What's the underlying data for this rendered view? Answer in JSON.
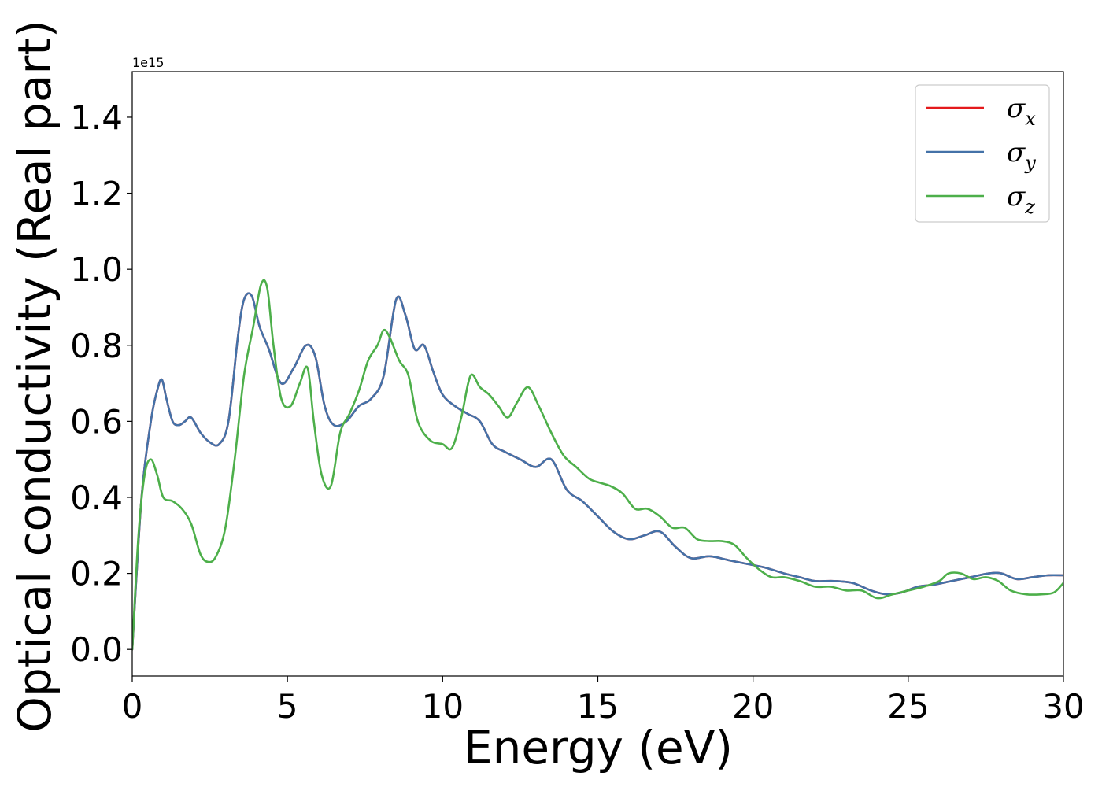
{
  "chart_data": {
    "type": "line",
    "title": "",
    "xlabel": "Energy (eV)",
    "ylabel": "Optical conductivity (Real part)",
    "y_offset_label": "1e15",
    "xlim": [
      0,
      30
    ],
    "ylim": [
      -0.07,
      1.52
    ],
    "y_scale": "×1e15",
    "grid": false,
    "legend_position": "upper-right",
    "x_ticks": [
      0,
      5,
      10,
      15,
      20,
      25,
      30
    ],
    "y_ticks": [
      "0.0",
      "0.2",
      "0.4",
      "0.6",
      "0.8",
      "1.0",
      "1.2",
      "1.4"
    ],
    "series": [
      {
        "name": "σx",
        "base": "σ",
        "sub": "x",
        "color": "#e41a1c",
        "x": [
          0.0,
          0.3,
          0.6,
          0.8,
          0.95,
          1.1,
          1.3,
          1.5,
          1.7,
          1.9,
          2.2,
          2.5,
          2.8,
          3.1,
          3.4,
          3.6,
          3.85,
          4.1,
          4.4,
          4.8,
          5.2,
          5.6,
          5.9,
          6.2,
          6.5,
          6.9,
          7.3,
          7.7,
          8.1,
          8.5,
          8.8,
          9.1,
          9.4,
          9.7,
          10.0,
          10.4,
          10.8,
          11.2,
          11.6,
          12.0,
          12.5,
          13.0,
          13.5,
          14.0,
          14.5,
          15.0,
          15.5,
          16.0,
          16.5,
          17.0,
          17.5,
          18.0,
          18.6,
          19.2,
          19.8,
          20.4,
          21.0,
          21.5,
          22.0,
          22.6,
          23.2,
          23.8,
          24.3,
          24.8,
          25.3,
          25.8,
          26.4,
          27.0,
          27.6,
          28.0,
          28.5,
          29.0,
          29.5,
          30.0
        ],
        "values": [
          0.0,
          0.4,
          0.6,
          0.68,
          0.71,
          0.66,
          0.6,
          0.59,
          0.6,
          0.61,
          0.57,
          0.545,
          0.54,
          0.6,
          0.82,
          0.92,
          0.93,
          0.85,
          0.79,
          0.7,
          0.74,
          0.8,
          0.77,
          0.64,
          0.59,
          0.6,
          0.64,
          0.66,
          0.72,
          0.92,
          0.88,
          0.79,
          0.8,
          0.73,
          0.67,
          0.64,
          0.62,
          0.6,
          0.54,
          0.52,
          0.5,
          0.48,
          0.5,
          0.42,
          0.39,
          0.35,
          0.31,
          0.29,
          0.3,
          0.31,
          0.27,
          0.24,
          0.245,
          0.235,
          0.225,
          0.215,
          0.2,
          0.19,
          0.18,
          0.18,
          0.175,
          0.155,
          0.145,
          0.15,
          0.165,
          0.17,
          0.18,
          0.19,
          0.2,
          0.2,
          0.185,
          0.19,
          0.195,
          0.195
        ]
      },
      {
        "name": "σy",
        "base": "σ",
        "sub": "y",
        "color": "#4472a8",
        "x": [
          0.0,
          0.3,
          0.6,
          0.8,
          0.95,
          1.1,
          1.3,
          1.5,
          1.7,
          1.9,
          2.2,
          2.5,
          2.8,
          3.1,
          3.4,
          3.6,
          3.85,
          4.1,
          4.4,
          4.8,
          5.2,
          5.6,
          5.9,
          6.2,
          6.5,
          6.9,
          7.3,
          7.7,
          8.1,
          8.5,
          8.8,
          9.1,
          9.4,
          9.7,
          10.0,
          10.4,
          10.8,
          11.2,
          11.6,
          12.0,
          12.5,
          13.0,
          13.5,
          14.0,
          14.5,
          15.0,
          15.5,
          16.0,
          16.5,
          17.0,
          17.5,
          18.0,
          18.6,
          19.2,
          19.8,
          20.4,
          21.0,
          21.5,
          22.0,
          22.6,
          23.2,
          23.8,
          24.3,
          24.8,
          25.3,
          25.8,
          26.4,
          27.0,
          27.6,
          28.0,
          28.5,
          29.0,
          29.5,
          30.0
        ],
        "values": [
          0.0,
          0.4,
          0.6,
          0.68,
          0.71,
          0.66,
          0.6,
          0.59,
          0.6,
          0.61,
          0.57,
          0.545,
          0.54,
          0.6,
          0.82,
          0.92,
          0.93,
          0.85,
          0.79,
          0.7,
          0.74,
          0.8,
          0.77,
          0.64,
          0.59,
          0.6,
          0.64,
          0.66,
          0.72,
          0.92,
          0.88,
          0.79,
          0.8,
          0.73,
          0.67,
          0.64,
          0.62,
          0.6,
          0.54,
          0.52,
          0.5,
          0.48,
          0.5,
          0.42,
          0.39,
          0.35,
          0.31,
          0.29,
          0.3,
          0.31,
          0.27,
          0.24,
          0.245,
          0.235,
          0.225,
          0.215,
          0.2,
          0.19,
          0.18,
          0.18,
          0.175,
          0.155,
          0.145,
          0.15,
          0.165,
          0.17,
          0.18,
          0.19,
          0.2,
          0.2,
          0.185,
          0.19,
          0.195,
          0.195
        ]
      },
      {
        "name": "σz",
        "base": "σ",
        "sub": "z",
        "color": "#4daf4a",
        "x": [
          0.0,
          0.2,
          0.4,
          0.6,
          0.8,
          1.0,
          1.3,
          1.6,
          1.9,
          2.2,
          2.45,
          2.7,
          3.0,
          3.3,
          3.6,
          3.9,
          4.15,
          4.35,
          4.55,
          4.8,
          5.1,
          5.4,
          5.65,
          5.85,
          6.1,
          6.4,
          6.7,
          7.0,
          7.3,
          7.6,
          7.9,
          8.1,
          8.3,
          8.6,
          8.9,
          9.2,
          9.6,
          10.0,
          10.3,
          10.6,
          10.9,
          11.2,
          11.5,
          11.8,
          12.1,
          12.4,
          12.75,
          13.1,
          13.5,
          13.9,
          14.3,
          14.7,
          15.0,
          15.4,
          15.8,
          16.2,
          16.6,
          17.0,
          17.4,
          17.8,
          18.2,
          18.6,
          19.0,
          19.4,
          19.8,
          20.2,
          20.6,
          21.0,
          21.5,
          22.0,
          22.5,
          23.0,
          23.5,
          24.0,
          24.5,
          25.0,
          25.5,
          26.0,
          26.3,
          26.7,
          27.1,
          27.5,
          27.9,
          28.3,
          28.8,
          29.3,
          29.7,
          30.0
        ],
        "values": [
          0.0,
          0.3,
          0.46,
          0.5,
          0.46,
          0.4,
          0.39,
          0.37,
          0.33,
          0.25,
          0.23,
          0.245,
          0.32,
          0.5,
          0.72,
          0.85,
          0.96,
          0.95,
          0.8,
          0.66,
          0.64,
          0.7,
          0.74,
          0.6,
          0.46,
          0.43,
          0.57,
          0.62,
          0.68,
          0.76,
          0.8,
          0.84,
          0.82,
          0.76,
          0.72,
          0.6,
          0.55,
          0.54,
          0.53,
          0.61,
          0.72,
          0.69,
          0.67,
          0.64,
          0.61,
          0.65,
          0.69,
          0.64,
          0.57,
          0.51,
          0.48,
          0.45,
          0.44,
          0.43,
          0.41,
          0.37,
          0.37,
          0.35,
          0.32,
          0.32,
          0.29,
          0.285,
          0.285,
          0.275,
          0.24,
          0.21,
          0.19,
          0.19,
          0.18,
          0.165,
          0.165,
          0.155,
          0.155,
          0.135,
          0.145,
          0.155,
          0.165,
          0.18,
          0.2,
          0.2,
          0.185,
          0.19,
          0.18,
          0.155,
          0.145,
          0.145,
          0.15,
          0.175
        ]
      }
    ]
  }
}
